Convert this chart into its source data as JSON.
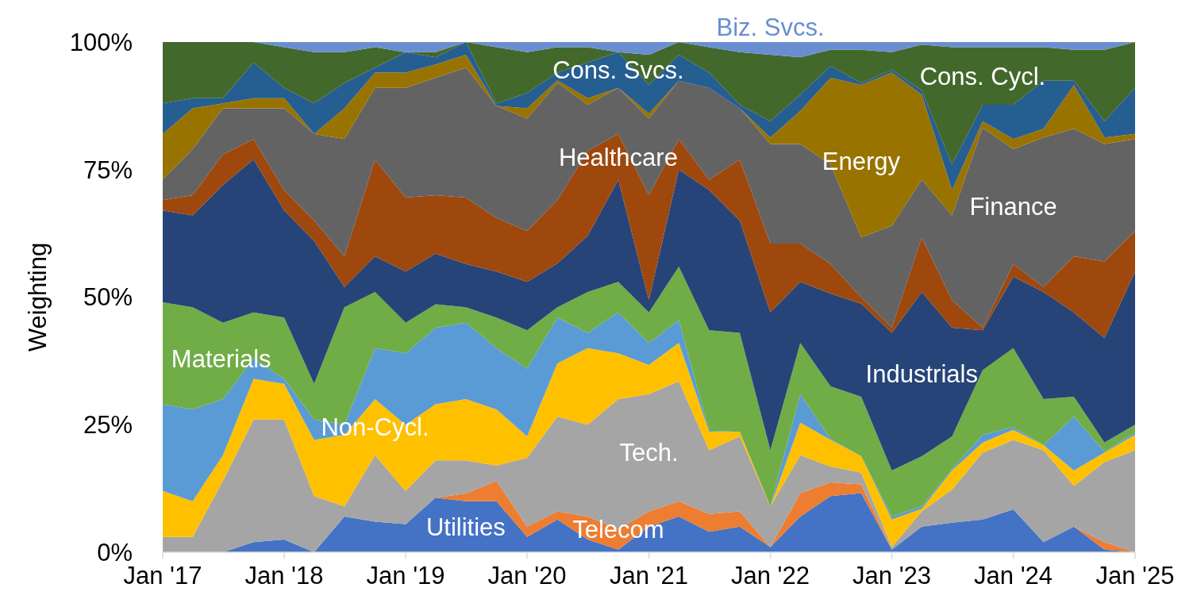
{
  "chart_data": {
    "type": "area",
    "stacked": true,
    "ylabel": "Weighting",
    "grid": false,
    "x": [
      "2017-01",
      "2017-04",
      "2017-07",
      "2017-10",
      "2018-01",
      "2018-04",
      "2018-07",
      "2018-10",
      "2019-01",
      "2019-04",
      "2019-07",
      "2019-10",
      "2020-01",
      "2020-04",
      "2020-07",
      "2020-10",
      "2021-01",
      "2021-04",
      "2021-07",
      "2021-10",
      "2022-01",
      "2022-04",
      "2022-07",
      "2022-10",
      "2023-01",
      "2023-04",
      "2023-07",
      "2023-10",
      "2024-01",
      "2024-04",
      "2024-07",
      "2024-10",
      "2025-01"
    ],
    "xlim": [
      "2017-01",
      "2025-01"
    ],
    "xticks": [
      {
        "value": "2017-01",
        "label": "Jan '17"
      },
      {
        "value": "2018-01",
        "label": "Jan '18"
      },
      {
        "value": "2019-01",
        "label": "Jan '19"
      },
      {
        "value": "2020-01",
        "label": "Jan '20"
      },
      {
        "value": "2021-01",
        "label": "Jan '21"
      },
      {
        "value": "2022-01",
        "label": "Jan '22"
      },
      {
        "value": "2023-01",
        "label": "Jan '23"
      },
      {
        "value": "2024-01",
        "label": "Jan '24"
      },
      {
        "value": "2025-01",
        "label": "Jan '25"
      }
    ],
    "ylim": [
      0,
      100
    ],
    "yticks": [
      {
        "value": 0,
        "label": "0%"
      },
      {
        "value": 25,
        "label": "25%"
      },
      {
        "value": 50,
        "label": "50%"
      },
      {
        "value": 75,
        "label": "75%"
      },
      {
        "value": 100,
        "label": "100%"
      }
    ],
    "series": [
      {
        "name": "Utilities",
        "color": "#4472c4",
        "values": [
          0,
          0,
          0,
          2,
          2.5,
          0,
          7,
          6,
          5.5,
          10.7,
          10,
          10,
          3,
          6.4,
          2.5,
          0.5,
          5,
          7,
          4,
          5,
          1,
          7,
          11,
          11.6,
          0.5,
          5,
          5.8,
          6.4,
          8.4,
          2,
          5,
          0.5,
          0
        ]
      },
      {
        "name": "Telecom",
        "color": "#ed7d31",
        "values": [
          0,
          0,
          0,
          0,
          0,
          0,
          0,
          0,
          0,
          0,
          1.5,
          4,
          2,
          1.6,
          4.5,
          4,
          3,
          3,
          3.5,
          3,
          0,
          4.6,
          2.7,
          1.7,
          0,
          0,
          0,
          0,
          0,
          0,
          0,
          1.5,
          0
        ]
      },
      {
        "name": "Tech.",
        "color": "#a5a5a5",
        "values": [
          3,
          3,
          14,
          24,
          23.5,
          11,
          2,
          13,
          6.5,
          7.3,
          6.5,
          3,
          13.5,
          18.6,
          18,
          25.5,
          23,
          23.5,
          12.5,
          14.7,
          8,
          7.4,
          3.1,
          2.3,
          0.5,
          3,
          6.5,
          13.1,
          13.6,
          18,
          8,
          15.7,
          20
        ]
      },
      {
        "name": "Non-Cycl.",
        "color": "#ffc000",
        "values": [
          9,
          7,
          5,
          8,
          7,
          11,
          14,
          11,
          13,
          11,
          12,
          11,
          4.2,
          10.4,
          15,
          9,
          5.7,
          7.5,
          3.6,
          0.9,
          0,
          6.4,
          5.2,
          3.2,
          5.4,
          0.5,
          3.7,
          2,
          2,
          1,
          3,
          1.8,
          3
        ]
      },
      {
        "color": "#5b9bd5",
        "values": [
          17,
          18,
          11,
          4,
          1,
          4,
          2,
          10,
          14,
          15,
          15,
          12,
          13.3,
          9,
          3,
          8,
          4.3,
          4.5,
          0.2,
          0,
          0,
          5.6,
          0.2,
          0,
          0.6,
          0.5,
          0.3,
          1.5,
          0.5,
          0,
          10.6,
          0.2,
          0.5
        ]
      },
      {
        "name": "Materials",
        "color": "#70ad47",
        "values": [
          20,
          20,
          15,
          9,
          12,
          7,
          23,
          11,
          6,
          4.6,
          3,
          6,
          7.5,
          2,
          8,
          6,
          6,
          10.5,
          19.7,
          19.4,
          11,
          10,
          10.3,
          11.7,
          9,
          9.8,
          6.4,
          12.7,
          15.5,
          9,
          3.9,
          1.8,
          1.5
        ]
      },
      {
        "name": "Industrials",
        "color": "#264478",
        "values": [
          18,
          18,
          27,
          30,
          21,
          28,
          4,
          7,
          10,
          9.9,
          8.5,
          9,
          9.5,
          8.6,
          11,
          20,
          2.4,
          19,
          27.5,
          22,
          27,
          12,
          18.2,
          18.2,
          27,
          32.2,
          21.3,
          7.8,
          14,
          21,
          16.5,
          20.5,
          30
        ]
      },
      {
        "name": "Healthcare",
        "color": "#9e480e",
        "values": [
          2,
          4,
          6,
          4,
          4,
          4,
          6,
          19,
          14.5,
          11.5,
          13,
          10.5,
          10,
          12.4,
          16.7,
          9,
          20.6,
          6,
          2,
          12,
          13.5,
          7.5,
          5.8,
          1.3,
          1,
          10.7,
          5.4,
          0.5,
          2.5,
          1,
          11,
          15,
          8
        ]
      },
      {
        "name": "Finance",
        "color": "#636363",
        "values": [
          4,
          9,
          9,
          6,
          16,
          17,
          23,
          14,
          21.5,
          23,
          25.5,
          22,
          22,
          23,
          9,
          9,
          15,
          11.4,
          18,
          10,
          19.5,
          19.5,
          19.5,
          11.7,
          20,
          11.3,
          16.6,
          39.2,
          22.5,
          29.3,
          25,
          23,
          18
        ]
      },
      {
        "name": "Energy",
        "color": "#997300",
        "values": [
          9,
          8,
          1,
          2,
          2,
          0,
          6,
          3,
          3,
          2.6,
          2.5,
          0,
          2,
          0.5,
          1.3,
          0,
          1,
          0,
          0,
          0,
          1.3,
          6.5,
          17,
          29.9,
          30,
          16.7,
          5,
          1.3,
          2,
          1.7,
          8.6,
          1.3,
          1
        ]
      },
      {
        "name": "Cons. Svcs.",
        "color": "#255e91",
        "values": [
          6,
          2,
          1,
          7,
          2,
          6,
          5,
          1,
          4,
          1.4,
          2.5,
          0.5,
          3,
          1.5,
          7,
          7,
          5.6,
          5.1,
          3,
          0.7,
          3.2,
          3.2,
          2.3,
          0.4,
          0.5,
          0.8,
          5,
          3.2,
          6.7,
          9.4,
          0.8,
          3.2,
          9
        ]
      },
      {
        "name": "Cons. Cycl.",
        "color": "#43682b",
        "values": [
          12,
          11,
          11,
          4,
          8,
          10,
          6,
          4,
          0,
          1,
          0,
          11,
          8,
          5,
          3,
          0,
          5.9,
          2.5,
          5,
          10.3,
          13,
          7.3,
          3.2,
          6.5,
          3.5,
          9,
          23,
          11.3,
          11.3,
          6.6,
          6.1,
          14,
          9
        ]
      },
      {
        "name": "Biz. Svcs.",
        "color": "#698ed0",
        "values": [
          0,
          0,
          0,
          0,
          1,
          2,
          2,
          1,
          2,
          2,
          0,
          1,
          2,
          1,
          1,
          2,
          2.5,
          0,
          1,
          2,
          2.5,
          3,
          1.5,
          1.5,
          2,
          0.5,
          1,
          1,
          1,
          1,
          1.5,
          1.5,
          0
        ]
      }
    ]
  }
}
